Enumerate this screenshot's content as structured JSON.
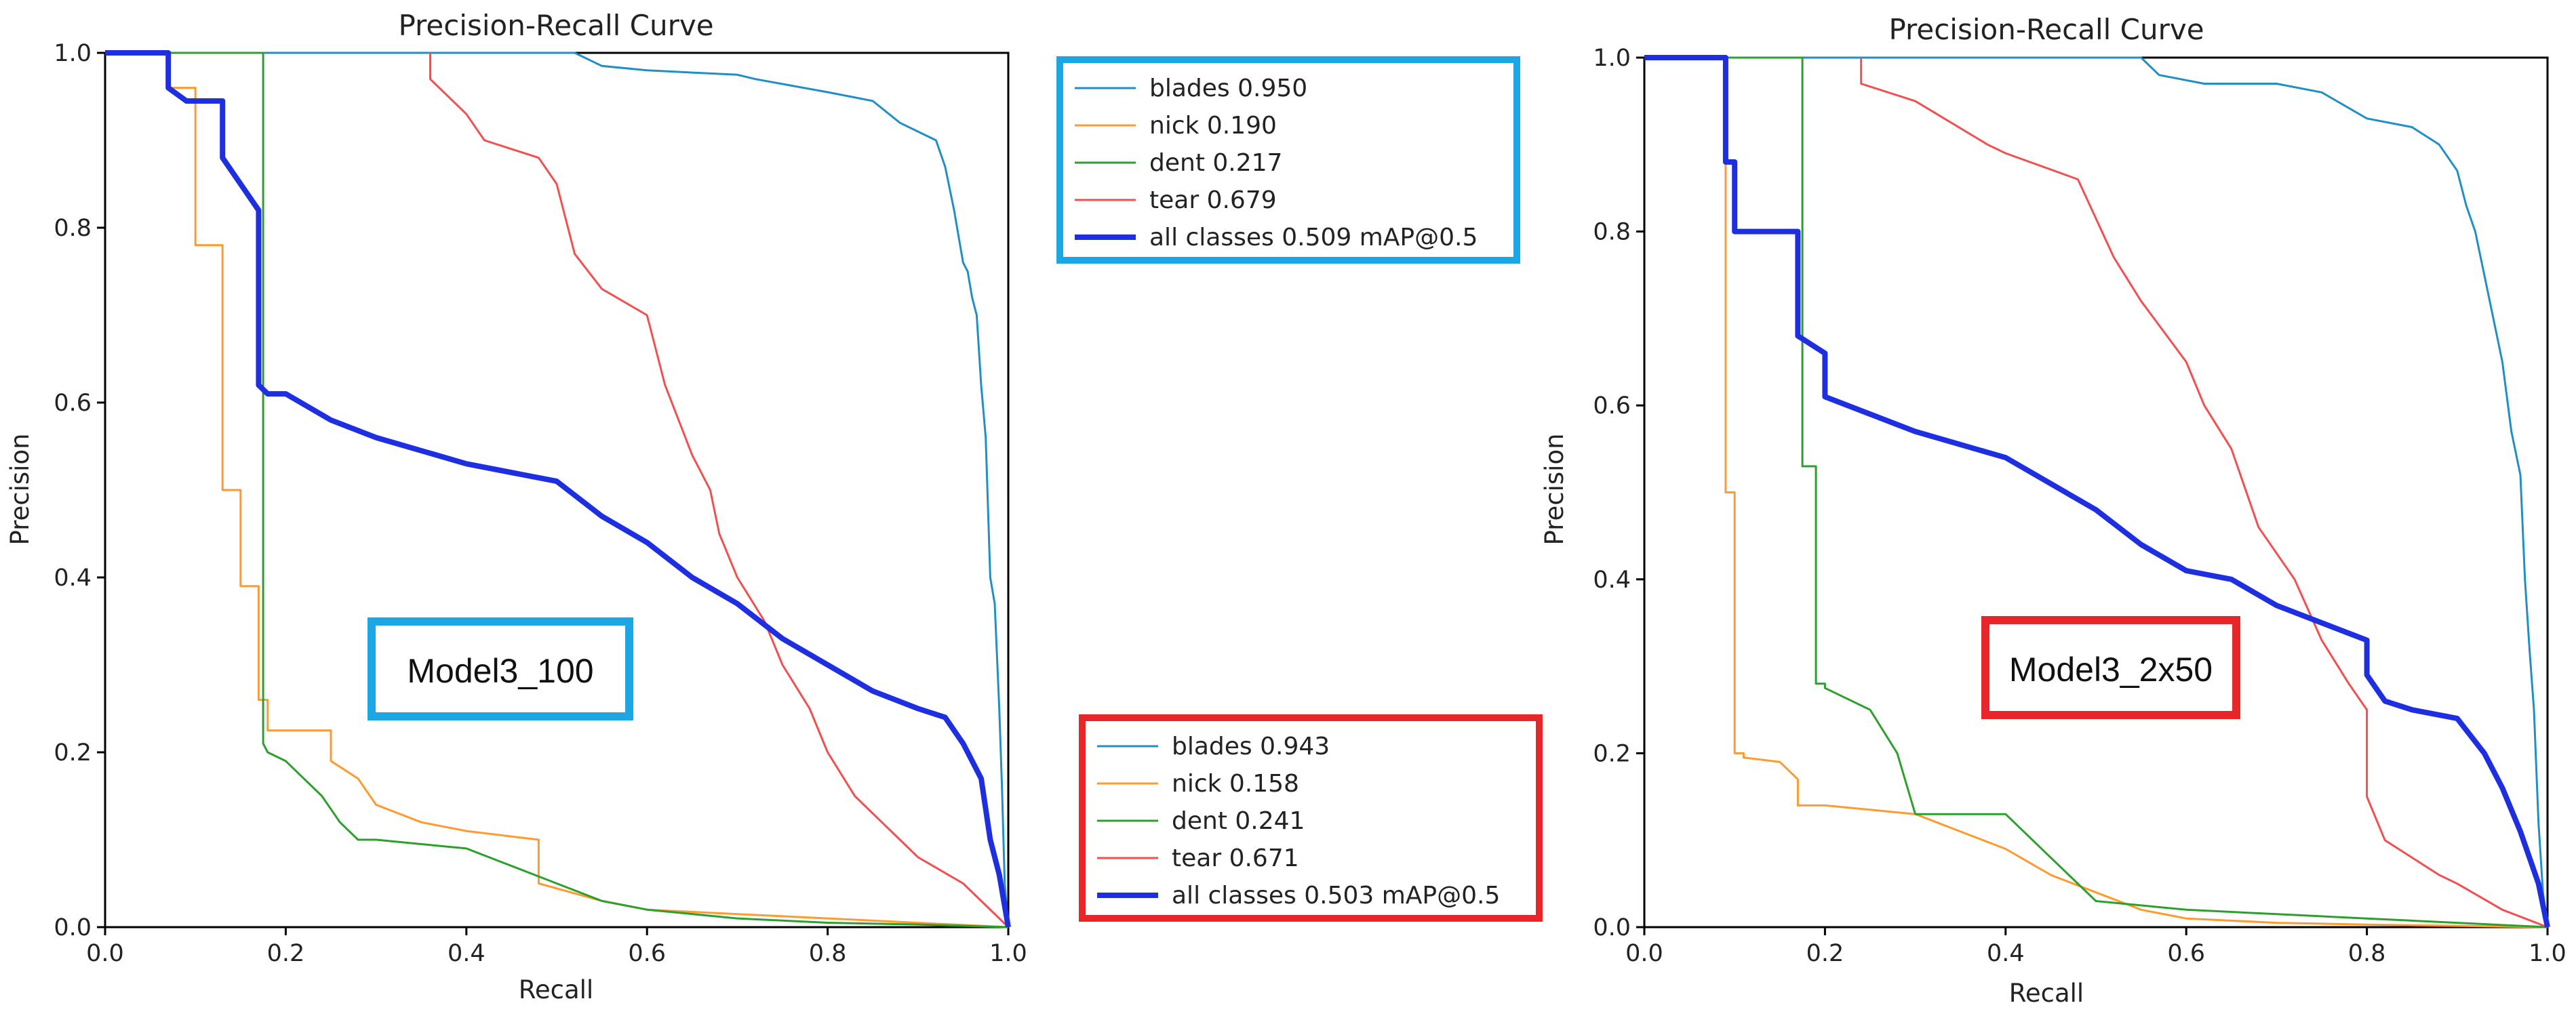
{
  "figure": {
    "left_title": "Precision-Recall Curve",
    "right_title": "Precision-Recall Curve",
    "left_model_label": "Model3_100",
    "right_model_label": "Model3_2x50",
    "legend_blue_box_color": "#1aa7e3",
    "legend_red_box_color": "#e8262a"
  },
  "colors": {
    "blades": "#1f8fc6",
    "nick": "#ff9a2e",
    "dent": "#2ca02c",
    "tear": "#f25050",
    "all": "#1d2fe0"
  },
  "legends": [
    {
      "entries": [
        {
          "key": "blades",
          "label": "blades 0.950"
        },
        {
          "key": "nick",
          "label": "nick 0.190"
        },
        {
          "key": "dent",
          "label": "dent 0.217"
        },
        {
          "key": "tear",
          "label": "tear 0.679"
        },
        {
          "key": "all",
          "label": "all classes 0.509 mAP@0.5"
        }
      ]
    },
    {
      "entries": [
        {
          "key": "blades",
          "label": "blades 0.943"
        },
        {
          "key": "nick",
          "label": "nick 0.158"
        },
        {
          "key": "dent",
          "label": "dent 0.241"
        },
        {
          "key": "tear",
          "label": "tear 0.671"
        },
        {
          "key": "all",
          "label": "all classes 0.503 mAP@0.5"
        }
      ]
    }
  ],
  "chart_data": [
    {
      "type": "line",
      "title": "Precision-Recall Curve",
      "xlabel": "Recall",
      "ylabel": "Precision",
      "xlim": [
        0,
        1
      ],
      "ylim": [
        0,
        1
      ],
      "xticks": [
        "0.0",
        "0.2",
        "0.4",
        "0.6",
        "0.8",
        "1.0"
      ],
      "yticks": [
        "0.0",
        "0.2",
        "0.4",
        "0.6",
        "0.8",
        "1.0"
      ],
      "series": [
        {
          "name": "blades 0.950",
          "key": "blades",
          "width": 3,
          "x": [
            0,
            0.52,
            0.55,
            0.6,
            0.7,
            0.72,
            0.8,
            0.85,
            0.88,
            0.9,
            0.92,
            0.93,
            0.94,
            0.945,
            0.95,
            0.955,
            0.96,
            0.965,
            0.97,
            0.975,
            0.98,
            0.985,
            0.99,
            0.993,
            0.996,
            1.0
          ],
          "y": [
            1,
            1,
            0.985,
            0.98,
            0.975,
            0.97,
            0.955,
            0.945,
            0.92,
            0.91,
            0.9,
            0.87,
            0.82,
            0.79,
            0.76,
            0.75,
            0.72,
            0.7,
            0.62,
            0.56,
            0.4,
            0.37,
            0.25,
            0.16,
            0.05,
            0.0
          ]
        },
        {
          "name": "nick 0.190",
          "key": "nick",
          "width": 3,
          "x": [
            0,
            0.07,
            0.07,
            0.1,
            0.1,
            0.13,
            0.13,
            0.15,
            0.15,
            0.17,
            0.17,
            0.18,
            0.18,
            0.25,
            0.25,
            0.28,
            0.3,
            0.35,
            0.4,
            0.48,
            0.48,
            0.55,
            0.6,
            0.7,
            0.8,
            1.0
          ],
          "y": [
            1,
            1,
            0.96,
            0.96,
            0.78,
            0.78,
            0.5,
            0.5,
            0.39,
            0.39,
            0.26,
            0.26,
            0.225,
            0.225,
            0.19,
            0.17,
            0.14,
            0.12,
            0.11,
            0.1,
            0.05,
            0.03,
            0.02,
            0.015,
            0.01,
            0.0
          ]
        },
        {
          "name": "dent 0.217",
          "key": "dent",
          "width": 3,
          "x": [
            0,
            0.175,
            0.175,
            0.18,
            0.2,
            0.22,
            0.24,
            0.26,
            0.28,
            0.3,
            0.35,
            0.4,
            0.45,
            0.5,
            0.55,
            0.6,
            0.7,
            0.8,
            0.9,
            1.0
          ],
          "y": [
            1,
            1,
            0.21,
            0.2,
            0.19,
            0.17,
            0.15,
            0.12,
            0.1,
            0.1,
            0.095,
            0.09,
            0.07,
            0.05,
            0.03,
            0.02,
            0.01,
            0.005,
            0.003,
            0.0
          ]
        },
        {
          "name": "tear 0.679",
          "key": "tear",
          "width": 3,
          "x": [
            0.36,
            0.36,
            0.4,
            0.42,
            0.45,
            0.48,
            0.5,
            0.52,
            0.55,
            0.6,
            0.62,
            0.65,
            0.67,
            0.68,
            0.7,
            0.73,
            0.75,
            0.78,
            0.8,
            0.83,
            0.86,
            0.88,
            0.9,
            0.95,
            1.0
          ],
          "y": [
            1,
            0.97,
            0.93,
            0.9,
            0.89,
            0.88,
            0.85,
            0.77,
            0.73,
            0.7,
            0.62,
            0.54,
            0.5,
            0.45,
            0.4,
            0.35,
            0.3,
            0.25,
            0.2,
            0.15,
            0.12,
            0.1,
            0.08,
            0.05,
            0.0
          ]
        },
        {
          "name": "all classes 0.509 mAP@0.5",
          "key": "all",
          "width": 8,
          "x": [
            0,
            0.07,
            0.07,
            0.09,
            0.13,
            0.13,
            0.15,
            0.17,
            0.17,
            0.18,
            0.2,
            0.25,
            0.3,
            0.4,
            0.5,
            0.55,
            0.6,
            0.65,
            0.7,
            0.75,
            0.8,
            0.85,
            0.9,
            0.93,
            0.95,
            0.97,
            0.98,
            0.99,
            1.0
          ],
          "y": [
            1,
            1,
            0.96,
            0.945,
            0.945,
            0.88,
            0.85,
            0.82,
            0.62,
            0.61,
            0.61,
            0.58,
            0.56,
            0.53,
            0.51,
            0.47,
            0.44,
            0.4,
            0.37,
            0.33,
            0.3,
            0.27,
            0.25,
            0.24,
            0.21,
            0.17,
            0.1,
            0.06,
            0.0
          ]
        }
      ]
    },
    {
      "type": "line",
      "title": "Precision-Recall Curve",
      "xlabel": "Recall",
      "ylabel": "Precision",
      "xlim": [
        0,
        1
      ],
      "ylim": [
        0,
        1
      ],
      "xticks": [
        "0.0",
        "0.2",
        "0.4",
        "0.6",
        "0.8",
        "1.0"
      ],
      "yticks": [
        "0.0",
        "0.2",
        "0.4",
        "0.6",
        "0.8",
        "1.0"
      ],
      "series": [
        {
          "name": "blades 0.943",
          "key": "blades",
          "width": 3,
          "x": [
            0,
            0.55,
            0.57,
            0.62,
            0.7,
            0.75,
            0.8,
            0.85,
            0.88,
            0.9,
            0.91,
            0.92,
            0.93,
            0.94,
            0.95,
            0.96,
            0.97,
            0.975,
            0.98,
            0.985,
            0.99,
            0.995,
            1.0
          ],
          "y": [
            1,
            1,
            0.98,
            0.97,
            0.97,
            0.96,
            0.93,
            0.92,
            0.9,
            0.87,
            0.83,
            0.8,
            0.75,
            0.7,
            0.65,
            0.57,
            0.52,
            0.4,
            0.32,
            0.25,
            0.12,
            0.04,
            0.0
          ]
        },
        {
          "name": "nick 0.158",
          "key": "nick",
          "width": 3,
          "x": [
            0,
            0.09,
            0.09,
            0.1,
            0.1,
            0.11,
            0.11,
            0.15,
            0.17,
            0.17,
            0.2,
            0.25,
            0.3,
            0.35,
            0.4,
            0.45,
            0.5,
            0.55,
            0.6,
            0.7,
            0.8,
            1.0
          ],
          "y": [
            1,
            1,
            0.5,
            0.5,
            0.2,
            0.2,
            0.195,
            0.19,
            0.17,
            0.14,
            0.14,
            0.135,
            0.13,
            0.11,
            0.09,
            0.06,
            0.04,
            0.02,
            0.01,
            0.005,
            0.003,
            0.0
          ]
        },
        {
          "name": "dent 0.241",
          "key": "dent",
          "width": 3,
          "x": [
            0,
            0.175,
            0.175,
            0.19,
            0.19,
            0.2,
            0.2,
            0.25,
            0.28,
            0.3,
            0.4,
            0.45,
            0.5,
            0.6,
            0.7,
            0.8,
            0.9,
            1.0
          ],
          "y": [
            1,
            1,
            0.53,
            0.53,
            0.28,
            0.28,
            0.275,
            0.25,
            0.2,
            0.13,
            0.13,
            0.08,
            0.03,
            0.02,
            0.015,
            0.01,
            0.005,
            0.0
          ]
        },
        {
          "name": "tear 0.671",
          "key": "tear",
          "width": 3,
          "x": [
            0.24,
            0.24,
            0.3,
            0.38,
            0.4,
            0.48,
            0.52,
            0.55,
            0.6,
            0.62,
            0.65,
            0.68,
            0.7,
            0.72,
            0.75,
            0.78,
            0.8,
            0.8,
            0.82,
            0.85,
            0.88,
            0.9,
            0.95,
            1.0
          ],
          "y": [
            1,
            0.97,
            0.95,
            0.9,
            0.89,
            0.86,
            0.77,
            0.72,
            0.65,
            0.6,
            0.55,
            0.46,
            0.43,
            0.4,
            0.33,
            0.28,
            0.25,
            0.15,
            0.1,
            0.08,
            0.06,
            0.05,
            0.02,
            0.0
          ]
        },
        {
          "name": "all classes 0.503 mAP@0.5",
          "key": "all",
          "width": 8,
          "x": [
            0,
            0.09,
            0.09,
            0.1,
            0.1,
            0.17,
            0.17,
            0.2,
            0.2,
            0.3,
            0.4,
            0.5,
            0.55,
            0.6,
            0.65,
            0.7,
            0.75,
            0.8,
            0.8,
            0.82,
            0.85,
            0.9,
            0.93,
            0.95,
            0.97,
            0.99,
            1.0
          ],
          "y": [
            1,
            1,
            0.88,
            0.88,
            0.8,
            0.8,
            0.68,
            0.66,
            0.61,
            0.57,
            0.54,
            0.48,
            0.44,
            0.41,
            0.4,
            0.37,
            0.35,
            0.33,
            0.29,
            0.26,
            0.25,
            0.24,
            0.2,
            0.16,
            0.11,
            0.05,
            0.0
          ]
        }
      ]
    }
  ]
}
